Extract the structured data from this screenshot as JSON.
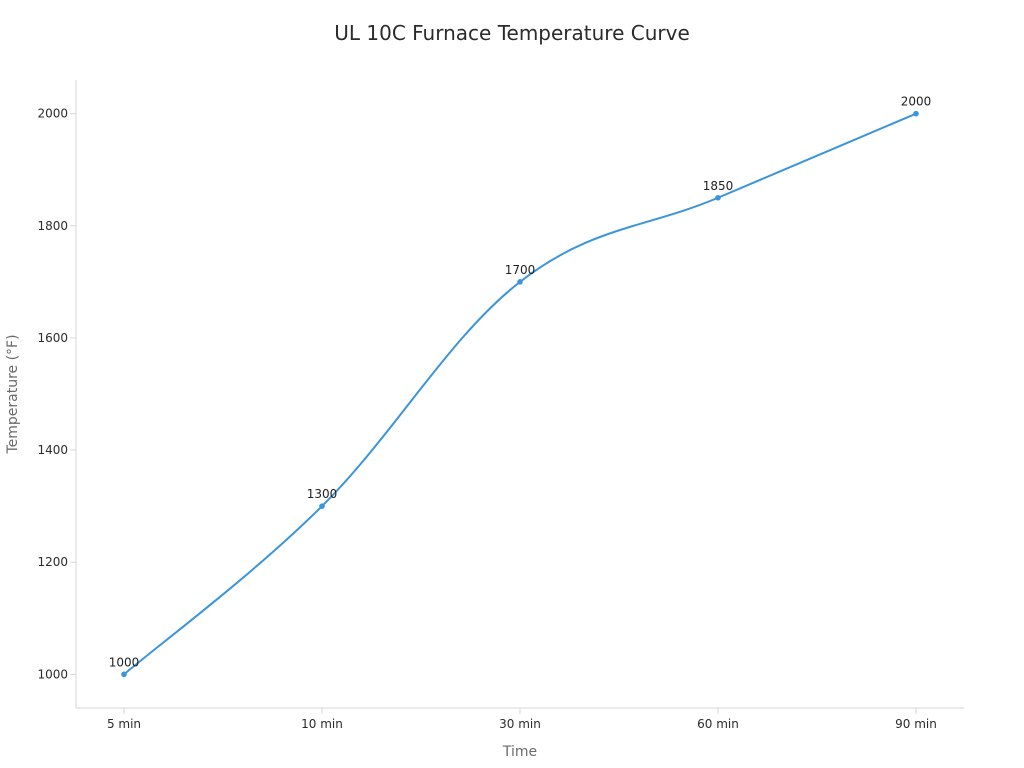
{
  "chart_data": {
    "type": "line",
    "title": "UL 10C Furnace Temperature Curve",
    "xlabel": "Time",
    "ylabel": "Temperature (°F)",
    "categories": [
      "5 min",
      "10 min",
      "30 min",
      "60 min",
      "90 min"
    ],
    "series": [
      {
        "values": [
          1000,
          1300,
          1700,
          1850,
          2000
        ],
        "color": "#3b95dc"
      }
    ],
    "ylim": [
      940,
      2060
    ],
    "yticks": [
      1000,
      1200,
      1400,
      1600,
      1800,
      2000
    ],
    "data_labels": [
      "1000",
      "1300",
      "1700",
      "1850",
      "2000"
    ],
    "grid": false,
    "legend": "none",
    "smooth": true
  }
}
